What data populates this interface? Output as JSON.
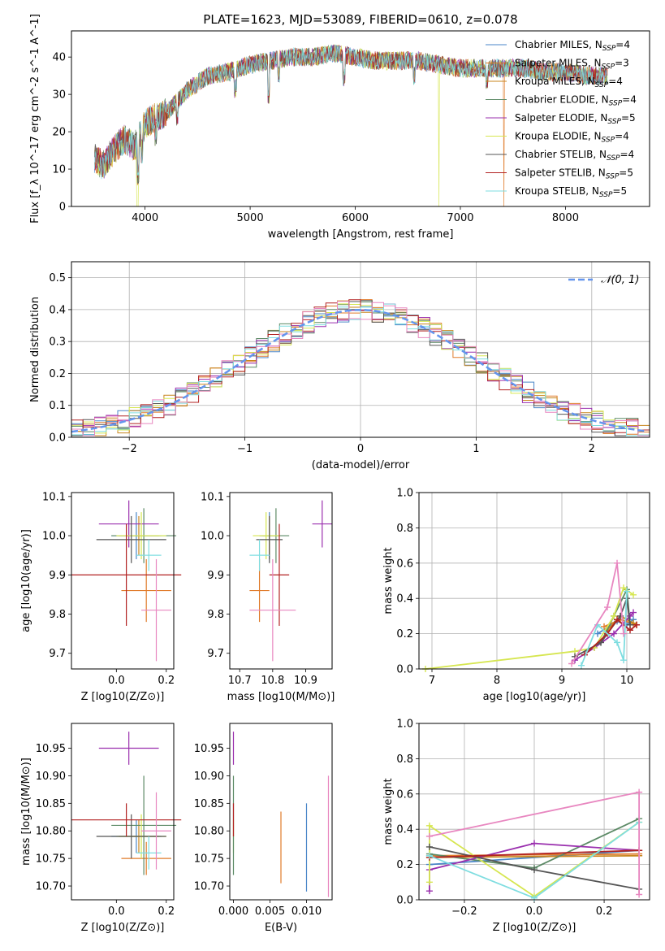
{
  "title": "PLATE=1623, MJD=53089, FIBERID=0610, z=0.078",
  "colors": {
    "chabrier_miles": "#4a86c8",
    "salpeter_miles": "#e07b2a",
    "kroupa_miles": "#c8861e",
    "chabrier_elodie": "#5c8a66",
    "salpeter_elodie": "#9a2fae",
    "kroupa_elodie": "#d6e650",
    "chabrier_stelib": "#555555",
    "salpeter_stelib": "#b22222",
    "kroupa_stelib": "#7fdde0",
    "salpeter_pink": "#e887c0",
    "normal_curve": "#6495ed"
  },
  "chart_data": [
    {
      "type": "line",
      "panel": "spectrum",
      "title": "PLATE=1623, MJD=53089, FIBERID=0610, z=0.078",
      "xlabel": "wavelength [Angstrom, rest frame]",
      "ylabel": "Flux [f_λ 10^-17 erg cm^-2 s^-1 A^-1]",
      "xlim": [
        3300,
        8800
      ],
      "ylim": [
        0,
        47
      ],
      "xticks": [
        "4000",
        "5000",
        "6000",
        "7000",
        "8000"
      ],
      "yticks": [
        "0",
        "10",
        "20",
        "30",
        "40"
      ],
      "legend_position": "top-right",
      "legend": [
        {
          "label": "Chabrier MILES, N_SSP=4",
          "color": "#4a86c8"
        },
        {
          "label": "Salpeter MILES, N_SSP=3",
          "color": "#e07b2a"
        },
        {
          "label": "Kroupa MILES, N_SSP=4",
          "color": "#c8861e"
        },
        {
          "label": "Chabrier ELODIE, N_SSP=4",
          "color": "#5c8a66"
        },
        {
          "label": "Salpeter ELODIE, N_SSP=5",
          "color": "#9a2fae"
        },
        {
          "label": "Kroupa ELODIE, N_SSP=4",
          "color": "#d6e650"
        },
        {
          "label": "Chabrier STELIB, N_SSP=4",
          "color": "#555555"
        },
        {
          "label": "Salpeter STELIB, N_SSP=5",
          "color": "#b22222"
        },
        {
          "label": "Kroupa STELIB, N_SSP=5",
          "color": "#7fdde0"
        }
      ],
      "continuum": {
        "x": [
          3520,
          3600,
          3700,
          3800,
          3900,
          4000,
          4100,
          4200,
          4300,
          4400,
          4500,
          4600,
          4800,
          5000,
          5200,
          5400,
          5600,
          5800,
          6000,
          6200,
          6400,
          6600,
          6800,
          7000,
          7200,
          7400,
          7600,
          7800,
          8000,
          8200,
          8400
        ],
        "y": [
          13,
          11,
          15,
          18,
          16,
          22,
          24,
          25,
          28,
          31,
          33,
          35,
          36,
          38,
          39,
          40,
          40,
          41,
          40,
          39,
          39,
          39,
          38,
          37,
          37,
          37,
          37,
          36,
          36,
          35,
          35
        ]
      }
    },
    {
      "type": "line",
      "panel": "residual-histogram",
      "xlabel": "(data-model)/error",
      "ylabel": "Normed distribution",
      "xlim": [
        -2.5,
        2.5
      ],
      "ylim": [
        0,
        0.55
      ],
      "xticks": [
        "−2",
        "−1",
        "0",
        "1",
        "2"
      ],
      "yticks": [
        "0.0",
        "0.1",
        "0.2",
        "0.3",
        "0.4",
        "0.5"
      ],
      "grid": true,
      "legend_position": "top-right",
      "legend": [
        {
          "label": "𝒩(0, 1)",
          "color": "#6495ed",
          "style": "dashed"
        }
      ],
      "normal_curve": {
        "mu": 0,
        "sigma": 1
      }
    },
    {
      "type": "scatter",
      "panel": "age-vs-Z",
      "xlabel": "Z [log10(Z/Z⊙)]",
      "ylabel": "age [log10(age/yr)]",
      "xlim": [
        -0.18,
        0.23
      ],
      "ylim": [
        9.66,
        10.11
      ],
      "xticks": [
        "0.0",
        "0.2"
      ],
      "yticks": [
        "9.7",
        "9.8",
        "9.9",
        "10.0",
        "10.1"
      ],
      "points": [
        {
          "x": 0.08,
          "xerr": 0.1,
          "y": 10.0,
          "yerr": 0.06,
          "color": "#4a86c8"
        },
        {
          "x": 0.12,
          "xerr": 0.1,
          "y": 9.86,
          "yerr": 0.08,
          "color": "#e07b2a"
        },
        {
          "x": 0.09,
          "xerr": 0.08,
          "y": 10.0,
          "yerr": 0.05,
          "color": "#c8861e"
        },
        {
          "x": 0.11,
          "xerr": 0.13,
          "y": 10.0,
          "yerr": 0.07,
          "color": "#5c8a66"
        },
        {
          "x": 0.05,
          "xerr": 0.12,
          "y": 10.03,
          "yerr": 0.06,
          "color": "#9a2fae"
        },
        {
          "x": 0.1,
          "xerr": 0.1,
          "y": 10.0,
          "yerr": 0.06,
          "color": "#d6e650"
        },
        {
          "x": 0.06,
          "xerr": 0.14,
          "y": 9.99,
          "yerr": 0.06,
          "color": "#555555"
        },
        {
          "x": 0.04,
          "xerr": 0.22,
          "y": 9.9,
          "yerr": 0.13,
          "color": "#b22222"
        },
        {
          "x": 0.13,
          "xerr": 0.05,
          "y": 9.95,
          "yerr": 0.04,
          "color": "#7fdde0"
        },
        {
          "x": 0.16,
          "xerr": 0.06,
          "y": 9.81,
          "yerr": 0.13,
          "color": "#e887c0"
        }
      ]
    },
    {
      "type": "scatter",
      "panel": "age-vs-mass",
      "xlabel": "mass [log10(M/M⊙)]",
      "ylabel": "",
      "xlim": [
        10.67,
        10.98
      ],
      "ylim": [
        9.66,
        10.11
      ],
      "xticks": [
        "10.7",
        "10.8",
        "10.9"
      ],
      "yticks": [
        "9.7",
        "9.8",
        "9.9",
        "10.0",
        "10.1"
      ],
      "points": [
        {
          "x": 10.79,
          "xerr": 0.03,
          "y": 10.0,
          "yerr": 0.06,
          "color": "#4a86c8"
        },
        {
          "x": 10.76,
          "xerr": 0.03,
          "y": 9.86,
          "yerr": 0.08,
          "color": "#e07b2a"
        },
        {
          "x": 10.79,
          "xerr": 0.03,
          "y": 10.0,
          "yerr": 0.05,
          "color": "#c8861e"
        },
        {
          "x": 10.81,
          "xerr": 0.04,
          "y": 10.0,
          "yerr": 0.07,
          "color": "#5c8a66"
        },
        {
          "x": 10.95,
          "xerr": 0.03,
          "y": 10.03,
          "yerr": 0.06,
          "color": "#9a2fae"
        },
        {
          "x": 10.78,
          "xerr": 0.04,
          "y": 10.0,
          "yerr": 0.06,
          "color": "#d6e650"
        },
        {
          "x": 10.79,
          "xerr": 0.04,
          "y": 9.99,
          "yerr": 0.06,
          "color": "#555555"
        },
        {
          "x": 10.82,
          "xerr": 0.03,
          "y": 9.9,
          "yerr": 0.13,
          "color": "#b22222"
        },
        {
          "x": 10.76,
          "xerr": 0.03,
          "y": 9.95,
          "yerr": 0.04,
          "color": "#7fdde0"
        },
        {
          "x": 10.8,
          "xerr": 0.07,
          "y": 9.81,
          "yerr": 0.13,
          "color": "#e887c0"
        }
      ]
    },
    {
      "type": "line",
      "panel": "mass-weight-vs-age",
      "xlabel": "age [log10(age/yr)]",
      "ylabel": "mass weight",
      "xlim": [
        6.8,
        10.35
      ],
      "ylim": [
        0,
        1
      ],
      "xticks": [
        "7",
        "8",
        "9",
        "10"
      ],
      "yticks": [
        "0.0",
        "0.2",
        "0.4",
        "0.6",
        "0.8",
        "1.0"
      ],
      "grid": true,
      "series": [
        {
          "color": "#4a86c8",
          "x": [
            9.55,
            9.85,
            10.0,
            10.1
          ],
          "y": [
            0.2,
            0.27,
            0.25,
            0.28
          ]
        },
        {
          "color": "#e07b2a",
          "x": [
            9.65,
            9.9,
            10.15
          ],
          "y": [
            0.24,
            0.28,
            0.25
          ]
        },
        {
          "color": "#c8861e",
          "x": [
            9.7,
            9.9,
            10.1,
            10.15
          ],
          "y": [
            0.22,
            0.3,
            0.26,
            0.25
          ]
        },
        {
          "color": "#5c8a66",
          "x": [
            9.6,
            9.8,
            10.0,
            10.05
          ],
          "y": [
            0.15,
            0.3,
            0.45,
            0.25
          ]
        },
        {
          "color": "#9a2fae",
          "x": [
            9.2,
            9.5,
            9.8,
            10.05,
            10.1
          ],
          "y": [
            0.05,
            0.12,
            0.2,
            0.3,
            0.32
          ]
        },
        {
          "color": "#d6e650",
          "x": [
            6.9,
            9.2,
            9.5,
            9.8,
            9.95,
            10.1
          ],
          "y": [
            0.0,
            0.1,
            0.12,
            0.3,
            0.46,
            0.42
          ]
        },
        {
          "color": "#555555",
          "x": [
            9.2,
            9.6,
            9.9,
            10.0,
            10.05
          ],
          "y": [
            0.07,
            0.15,
            0.3,
            0.4,
            0.25
          ]
        },
        {
          "color": "#b22222",
          "x": [
            9.35,
            9.7,
            9.85,
            10.05,
            10.15
          ],
          "y": [
            0.08,
            0.2,
            0.28,
            0.22,
            0.25
          ]
        },
        {
          "color": "#7fdde0",
          "x": [
            9.3,
            9.55,
            9.85,
            9.95,
            10.0
          ],
          "y": [
            0.02,
            0.25,
            0.15,
            0.05,
            0.44
          ]
        },
        {
          "color": "#e887c0",
          "x": [
            9.15,
            9.7,
            9.85,
            9.95
          ],
          "y": [
            0.03,
            0.35,
            0.6,
            0.2
          ]
        }
      ]
    },
    {
      "type": "scatter",
      "panel": "mass-vs-Z",
      "xlabel": "Z [log10(Z/Z⊙)]",
      "ylabel": "mass [log10(M/M⊙)]",
      "xlim": [
        -0.18,
        0.23
      ],
      "ylim": [
        10.675,
        10.995
      ],
      "xticks": [
        "0.0",
        "0.2"
      ],
      "yticks": [
        "10.70",
        "10.75",
        "10.80",
        "10.85",
        "10.90",
        "10.95"
      ],
      "points": [
        {
          "x": 0.08,
          "xerr": 0.1,
          "y": 10.79,
          "yerr": 0.03,
          "color": "#4a86c8"
        },
        {
          "x": 0.12,
          "xerr": 0.1,
          "y": 10.75,
          "yerr": 0.03,
          "color": "#e07b2a"
        },
        {
          "x": 0.09,
          "xerr": 0.08,
          "y": 10.79,
          "yerr": 0.03,
          "color": "#c8861e"
        },
        {
          "x": 0.11,
          "xerr": 0.13,
          "y": 10.81,
          "yerr": 0.09,
          "color": "#5c8a66"
        },
        {
          "x": 0.05,
          "xerr": 0.12,
          "y": 10.95,
          "yerr": 0.03,
          "color": "#9a2fae"
        },
        {
          "x": 0.1,
          "xerr": 0.1,
          "y": 10.79,
          "yerr": 0.04,
          "color": "#d6e650"
        },
        {
          "x": 0.06,
          "xerr": 0.14,
          "y": 10.79,
          "yerr": 0.04,
          "color": "#555555"
        },
        {
          "x": 0.04,
          "xerr": 0.22,
          "y": 10.82,
          "yerr": 0.03,
          "color": "#b22222"
        },
        {
          "x": 0.13,
          "xerr": 0.05,
          "y": 10.76,
          "yerr": 0.03,
          "color": "#7fdde0"
        },
        {
          "x": 0.16,
          "xerr": 0.06,
          "y": 10.8,
          "yerr": 0.07,
          "color": "#e887c0"
        }
      ]
    },
    {
      "type": "scatter",
      "panel": "mass-vs-ebv",
      "xlabel": "E(B-V)",
      "ylabel": "",
      "xlim": [
        -0.0005,
        0.0135
      ],
      "ylim": [
        10.675,
        10.995
      ],
      "xticks": [
        "0.000",
        "0.005",
        "0.010"
      ],
      "yticks": [
        "10.70",
        "10.75",
        "10.80",
        "10.85",
        "10.90",
        "10.95"
      ],
      "points": [
        {
          "x": 0.0,
          "y": 10.79,
          "yerr": 0.03,
          "color": "#d6e650"
        },
        {
          "x": 0.0,
          "y": 10.81,
          "yerr": 0.09,
          "color": "#5c8a66"
        },
        {
          "x": 0.0,
          "y": 10.95,
          "yerr": 0.03,
          "color": "#9a2fae"
        },
        {
          "x": 0.0,
          "y": 10.82,
          "yerr": 0.03,
          "color": "#b22222"
        },
        {
          "x": 0.0065,
          "y": 10.77,
          "yerr": 0.065,
          "color": "#e07b2a"
        },
        {
          "x": 0.01,
          "y": 10.77,
          "yerr": 0.08,
          "color": "#4a86c8"
        },
        {
          "x": 0.013,
          "y": 10.79,
          "yerr": 0.11,
          "color": "#e887c0"
        }
      ]
    },
    {
      "type": "line",
      "panel": "mass-weight-vs-Z",
      "xlabel": "Z [log10(Z/Z⊙)]",
      "ylabel": "mass weight",
      "xlim": [
        -0.33,
        0.33
      ],
      "ylim": [
        0,
        1
      ],
      "xticks": [
        "−0.2",
        "0.0",
        "0.2"
      ],
      "yticks": [
        "0.0",
        "0.2",
        "0.4",
        "0.6",
        "0.8",
        "1.0"
      ],
      "grid": true,
      "series": [
        {
          "color": "#4a86c8",
          "x": [
            -0.3,
            0.3
          ],
          "y": [
            0.2,
            0.28
          ]
        },
        {
          "color": "#e07b2a",
          "x": [
            -0.3,
            0.3
          ],
          "y": [
            0.25,
            0.26
          ]
        },
        {
          "color": "#c8861e",
          "x": [
            -0.3,
            0.3
          ],
          "y": [
            0.24,
            0.25
          ]
        },
        {
          "color": "#5c8a66",
          "x": [
            -0.3,
            0.0,
            0.3
          ],
          "y": [
            0.26,
            0.18,
            0.46
          ]
        },
        {
          "color": "#9a2fae",
          "x": [
            -0.3,
            -0.3,
            0.0,
            0.3
          ],
          "y": [
            0.05,
            0.17,
            0.32,
            0.28
          ]
        },
        {
          "color": "#d6e650",
          "x": [
            -0.3,
            -0.3,
            0.0,
            0.3
          ],
          "y": [
            0.1,
            0.42,
            0.02,
            0.44
          ]
        },
        {
          "color": "#555555",
          "x": [
            -0.3,
            0.0,
            0.3
          ],
          "y": [
            0.3,
            0.17,
            0.06
          ]
        },
        {
          "color": "#b22222",
          "x": [
            -0.3,
            0.3
          ],
          "y": [
            0.24,
            0.28
          ]
        },
        {
          "color": "#7fdde0",
          "x": [
            -0.3,
            0.0,
            0.3
          ],
          "y": [
            0.25,
            0.01,
            0.44
          ]
        },
        {
          "color": "#e887c0",
          "x": [
            -0.3,
            0.3,
            0.3
          ],
          "y": [
            0.36,
            0.61,
            0.03
          ]
        }
      ]
    }
  ]
}
